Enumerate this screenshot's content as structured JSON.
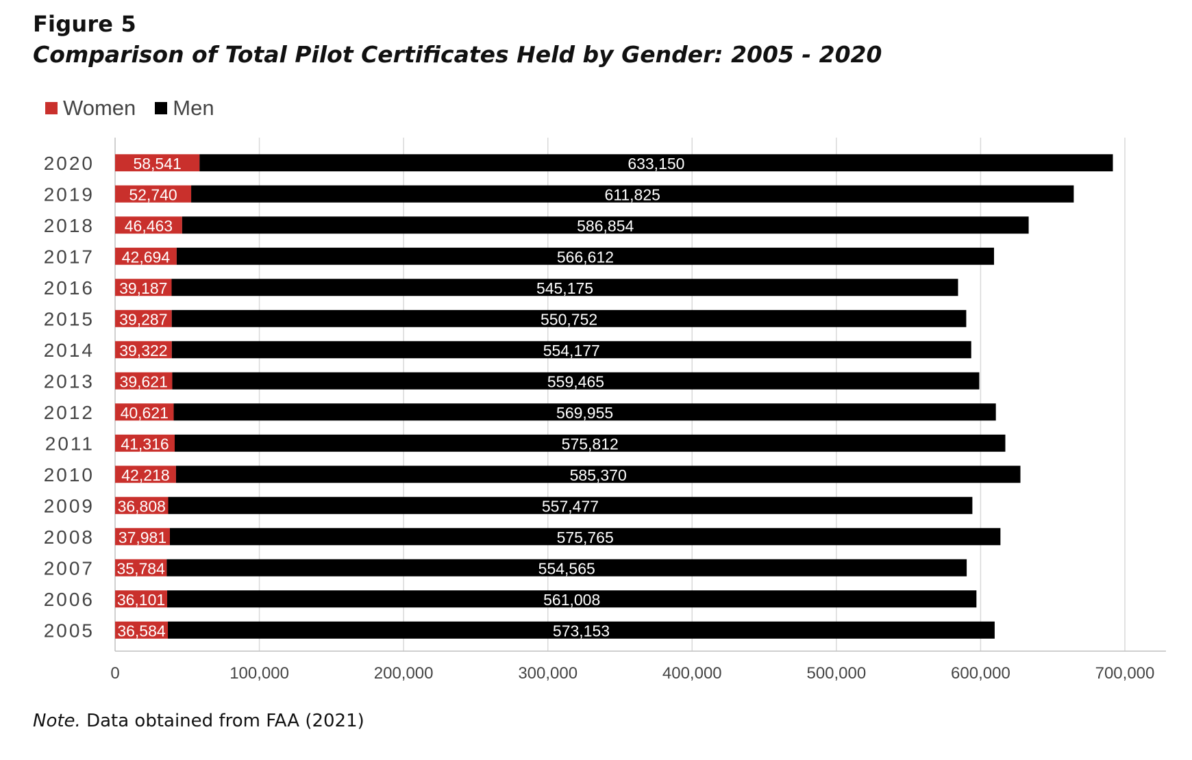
{
  "figure": {
    "label": "Figure 5",
    "title": "Comparison of Total Pilot Certificates Held by Gender: 2005 - 2020"
  },
  "note": {
    "prefix": "Note.",
    "text": "Data obtained from FAA (2021)"
  },
  "colors": {
    "women": "#c9302c",
    "men": "#000000",
    "grid": "#d9d9d9",
    "axis_text": "#444444"
  },
  "chart_data": {
    "type": "bar",
    "orientation": "horizontal",
    "stacked": true,
    "categories": [
      "2020",
      "2019",
      "2018",
      "2017",
      "2016",
      "2015",
      "2014",
      "2013",
      "2012",
      "2011",
      "2010",
      "2009",
      "2008",
      "2007",
      "2006",
      "2005"
    ],
    "series": [
      {
        "name": "Women",
        "values": [
          58541,
          52740,
          46463,
          42694,
          39187,
          39287,
          39322,
          39621,
          40621,
          41316,
          42218,
          36808,
          37981,
          35784,
          36101,
          36584
        ],
        "labels": [
          "58,541",
          "52,740",
          "46,463",
          "42,694",
          "39,187",
          "39,287",
          "39,322",
          "39,621",
          "40,621",
          "41,316",
          "42,218",
          "36,808",
          "37,981",
          "35,784",
          "36,101",
          "36,584"
        ]
      },
      {
        "name": "Men",
        "values": [
          633150,
          611825,
          586854,
          566612,
          545175,
          550752,
          554177,
          559465,
          569955,
          575812,
          585370,
          557477,
          575765,
          554565,
          561008,
          573153
        ],
        "labels": [
          "633,150",
          "611,825",
          "586,854",
          "566,612",
          "545,175",
          "550,752",
          "554,177",
          "559,465",
          "569,955",
          "575,812",
          "585,370",
          "557,477",
          "575,765",
          "554,565",
          "561,008",
          "573,153"
        ]
      }
    ],
    "xlim": [
      0,
      700000
    ],
    "x_ticks": [
      0,
      100000,
      200000,
      300000,
      400000,
      500000,
      600000,
      700000
    ],
    "x_tick_labels": [
      "0",
      "100,000",
      "200,000",
      "300,000",
      "400,000",
      "500,000",
      "600,000",
      "700,000"
    ],
    "grid": true,
    "legend_position": "top-left"
  }
}
